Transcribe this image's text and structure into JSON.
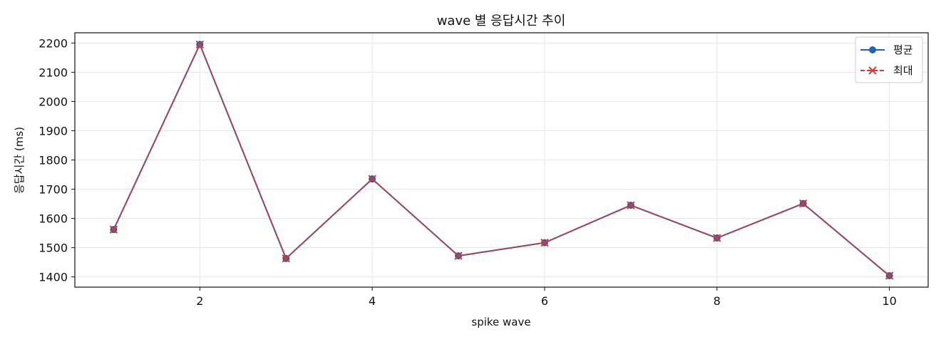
{
  "chart_data": {
    "type": "line",
    "title": "wave 별 응답시간 추이",
    "xlabel": "spike wave",
    "ylabel": "응답시간 (ms)",
    "x": [
      1,
      2,
      3,
      4,
      5,
      6,
      7,
      8,
      9,
      10
    ],
    "xlim": [
      0.55,
      10.45
    ],
    "ylim": [
      1365,
      2235
    ],
    "xticks": [
      2,
      4,
      6,
      8,
      10
    ],
    "yticks": [
      1400,
      1500,
      1600,
      1700,
      1800,
      1900,
      2000,
      2100,
      2200
    ],
    "grid": true,
    "legend_position": "top-right",
    "series": [
      {
        "name": "평균",
        "color": "#1f63b5",
        "line_style": "solid",
        "marker": "circle",
        "values": [
          1562,
          2195,
          1463,
          1735,
          1472,
          1517,
          1645,
          1533,
          1651,
          1404
        ]
      },
      {
        "name": "최대",
        "color": "#d23a3a",
        "line_style": "dashed",
        "marker": "x",
        "values": [
          1562,
          2195,
          1463,
          1735,
          1472,
          1517,
          1645,
          1533,
          1651,
          1404
        ]
      }
    ]
  }
}
